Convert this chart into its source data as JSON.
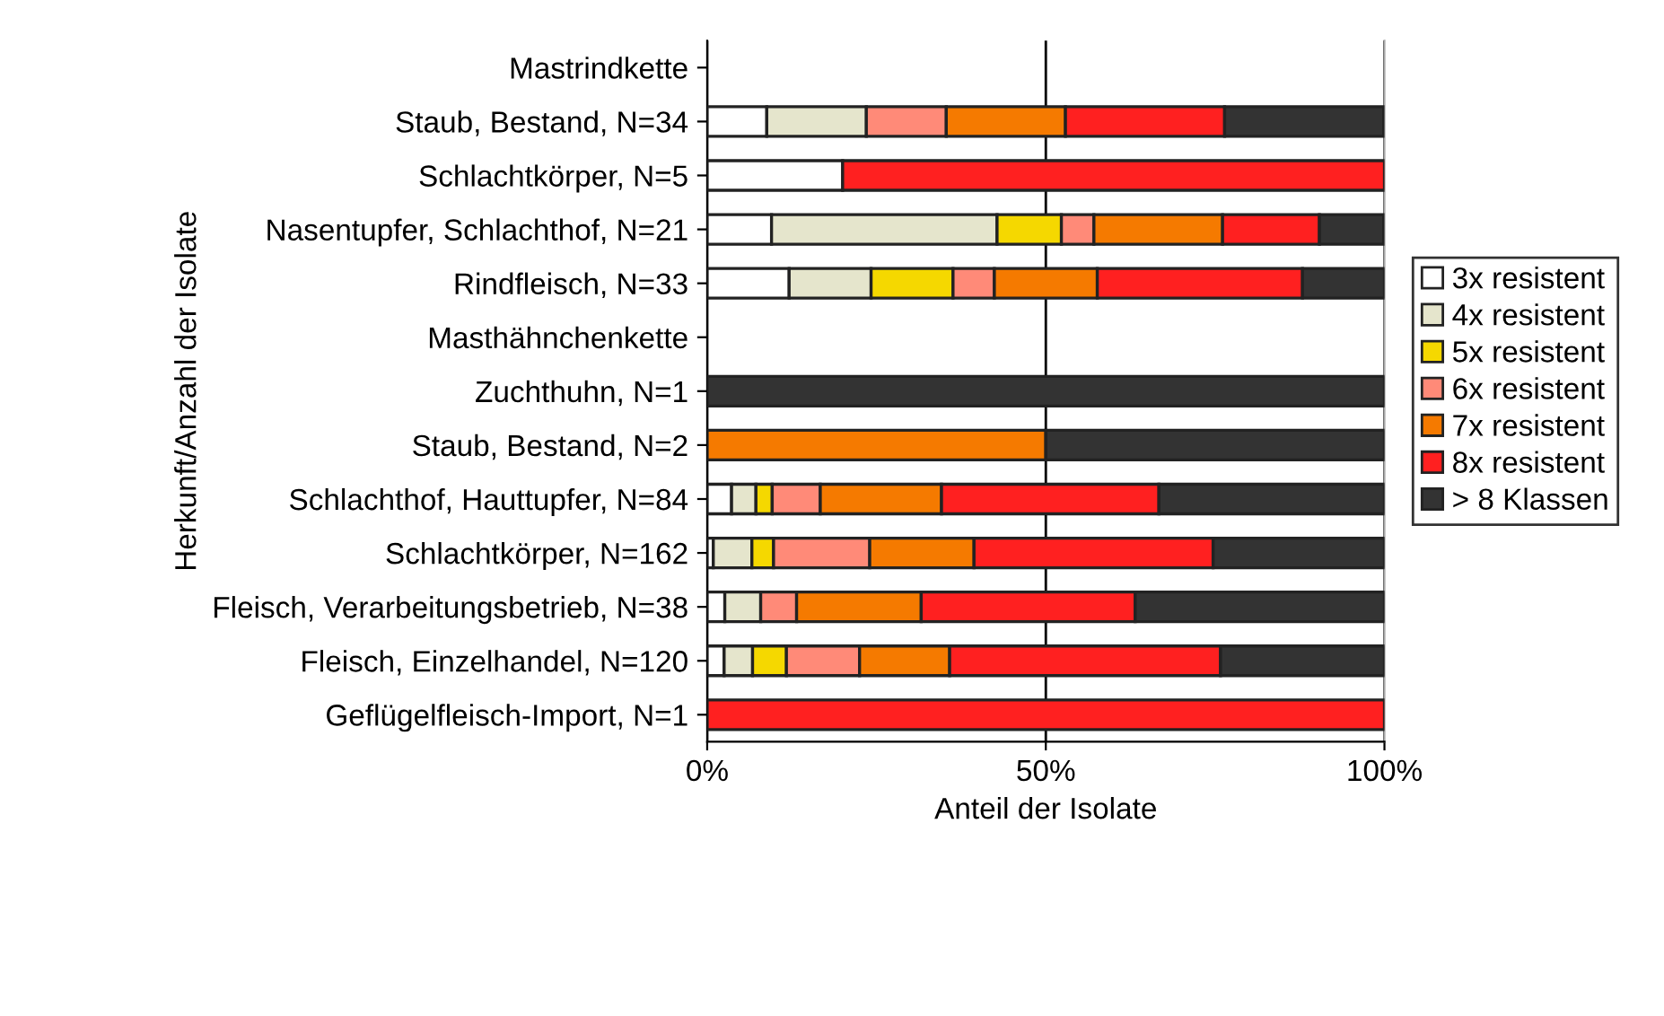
{
  "chart_data": {
    "type": "bar",
    "orientation": "horizontal",
    "stacked": true,
    "xlabel": "Anteil der Isolate",
    "ylabel": "Herkunft/Anzahl der Isolate",
    "categories": [
      "Mastrindkette",
      "Staub, Bestand, N=34",
      "Schlachtkörper, N=5",
      "Nasentupfer, Schlachthof, N=21",
      "Rindfleisch, N=33",
      "Masthähnchenkette",
      "Zuchthuhn, N=1",
      "Staub, Bestand, N=2",
      "Schlachthof, Hauttupfer, N=84",
      "Schlachtkörper, N=162",
      "Fleisch, Verarbeitungsbetrieb, N=38",
      "Fleisch, Einzelhandel, N=120",
      "Geflügelfleisch-Import, N=1"
    ],
    "series": [
      {
        "name": "3x resistent",
        "color": "#ffffff",
        "values": [
          null,
          8.8,
          20,
          9.5,
          12.1,
          null,
          0,
          0,
          3.6,
          0.9,
          2.6,
          2.5,
          0
        ]
      },
      {
        "name": "4x resistent",
        "color": "#e5e5cc",
        "values": [
          null,
          14.7,
          0,
          33.3,
          12.1,
          null,
          0,
          0,
          3.6,
          5.7,
          5.3,
          4.2,
          0
        ]
      },
      {
        "name": "5x resistent",
        "color": "#f5d800",
        "values": [
          null,
          0,
          0,
          9.5,
          12.1,
          null,
          0,
          0,
          2.4,
          3.2,
          0,
          5.0,
          0
        ]
      },
      {
        "name": "6x resistent",
        "color": "#ff8a78",
        "values": [
          null,
          11.8,
          0,
          4.8,
          6.1,
          null,
          0,
          0,
          7.1,
          14.2,
          5.3,
          10.8,
          0
        ]
      },
      {
        "name": "7x resistent",
        "color": "#f57a00",
        "values": [
          null,
          17.6,
          0,
          19.0,
          15.2,
          null,
          0,
          50,
          17.9,
          15.4,
          18.4,
          13.3,
          0
        ]
      },
      {
        "name": "8x resistent",
        "color": "#ff2020",
        "values": [
          null,
          23.5,
          80,
          14.3,
          30.3,
          null,
          0,
          0,
          32.1,
          35.3,
          31.6,
          40.0,
          100
        ]
      },
      {
        "name": "> 8 Klassen",
        "color": "#333333",
        "values": [
          null,
          23.5,
          0,
          9.5,
          12.1,
          null,
          100,
          50,
          33.3,
          25.3,
          36.8,
          24.2,
          0
        ]
      }
    ],
    "xlim": [
      0,
      100
    ],
    "xticks": [
      {
        "value": 0,
        "label": "0%"
      },
      {
        "value": 50,
        "label": "50%"
      },
      {
        "value": 100,
        "label": "100%"
      }
    ],
    "grid": "x",
    "legend": "right"
  }
}
